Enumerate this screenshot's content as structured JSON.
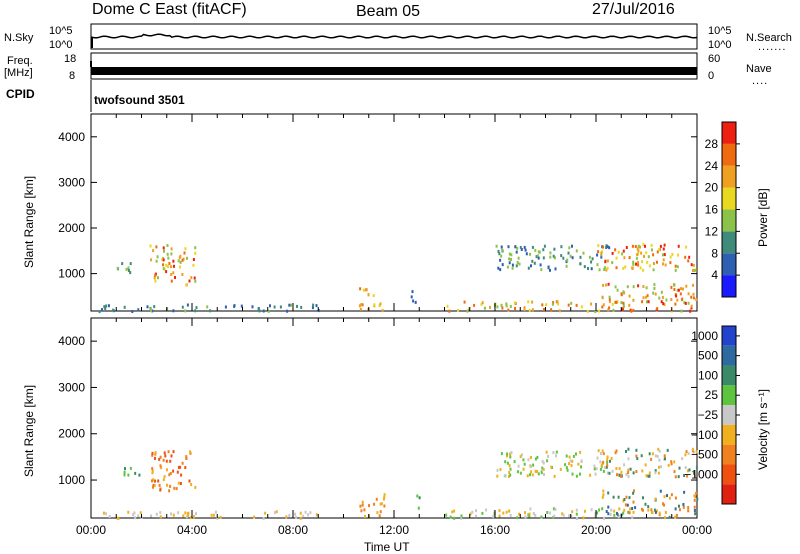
{
  "header": {
    "radar": "Dome C East (fitACF)",
    "beam": "Beam 05",
    "date": "27/Jul/2016"
  },
  "chart_data": [
    {
      "type": "line",
      "name": "noise-panel",
      "left_label": "N.Sky",
      "left_ticks": [
        "10^5",
        "10^0"
      ],
      "right_label": "N.Search",
      "right_ticks": [
        "10^5",
        "10^0"
      ]
    },
    {
      "type": "line",
      "name": "frequency-nave-panel",
      "left_label": [
        "Freq.",
        "[MHz]"
      ],
      "left_ticks": [
        "18",
        "8"
      ],
      "right_label": "Nave",
      "right_ticks": [
        "60",
        "0"
      ]
    },
    {
      "type": "table",
      "name": "cpid-panel",
      "label": "CPID",
      "value": "twofsound 3501"
    },
    {
      "type": "heatmap",
      "name": "power-panel",
      "ylabel": "Slant Range [km]",
      "xlabel": "",
      "ylim": [
        180,
        4500
      ],
      "yticks": [
        1000,
        2000,
        3000,
        4000
      ],
      "xlim": [
        0,
        24
      ],
      "colorbar": {
        "label": "Power [dB]",
        "ticks": [
          "4",
          "8",
          "12",
          "16",
          "20",
          "24",
          "28"
        ],
        "colors": [
          "#1a1aff",
          "#2f5fb0",
          "#3f8a7a",
          "#8bc34a",
          "#e8d820",
          "#f0a020",
          "#f06a10",
          "#ee2010"
        ]
      },
      "blobs": [
        {
          "t0": 1.0,
          "t1": 1.9,
          "r0": 1050,
          "r1": 1300,
          "c": [
            2,
            3
          ]
        },
        {
          "t0": 2.3,
          "t1": 4.1,
          "r0": 750,
          "r1": 1650,
          "c": [
            4,
            5,
            6,
            7,
            3
          ]
        },
        {
          "t0": 10.6,
          "t1": 11.6,
          "r0": 200,
          "r1": 750,
          "c": [
            4,
            5,
            6
          ]
        },
        {
          "t0": 12.5,
          "t1": 13.1,
          "r0": 400,
          "r1": 700,
          "c": [
            1,
            2
          ]
        },
        {
          "t0": 14.0,
          "t1": 21.5,
          "r0": 200,
          "r1": 420,
          "c": [
            5,
            6,
            3,
            4
          ]
        },
        {
          "t0": 16.0,
          "t1": 20.5,
          "r0": 1100,
          "r1": 1650,
          "c": [
            2,
            3,
            1
          ]
        },
        {
          "t0": 20.0,
          "t1": 24,
          "r0": 1100,
          "r1": 1700,
          "c": [
            4,
            5,
            6,
            7,
            3
          ]
        },
        {
          "t0": 20.2,
          "t1": 24,
          "r0": 200,
          "r1": 800,
          "c": [
            6,
            7,
            5,
            3
          ]
        },
        {
          "t0": 0.1,
          "t1": 9.0,
          "r0": 200,
          "r1": 350,
          "c": [
            1,
            2,
            3
          ]
        }
      ]
    },
    {
      "type": "heatmap",
      "name": "velocity-panel",
      "ylabel": "Slant Range [km]",
      "xlabel": "Time UT",
      "ylim": [
        180,
        4500
      ],
      "yticks": [
        1000,
        2000,
        3000,
        4000
      ],
      "xlim": [
        0,
        24
      ],
      "xticks": [
        "00:00",
        "04:00",
        "08:00",
        "12:00",
        "16:00",
        "20:00",
        "00:00"
      ],
      "colorbar": {
        "label": "Velocity [m s⁻¹]",
        "ticks": [
          "1000",
          "500",
          "100",
          "25",
          "−25",
          "−100",
          "−500",
          "−1000"
        ],
        "colors": [
          "#2244cc",
          "#2e6aa0",
          "#3a8a68",
          "#5ec440",
          "#c8c8c8",
          "#f0b020",
          "#f08020",
          "#f05010",
          "#e02010"
        ]
      },
      "blobs": [
        {
          "t0": 1.0,
          "t1": 1.9,
          "r0": 1050,
          "r1": 1300,
          "c": [
            2,
            3
          ]
        },
        {
          "t0": 2.3,
          "t1": 4.1,
          "r0": 750,
          "r1": 1650,
          "c": [
            6,
            7,
            5
          ]
        },
        {
          "t0": 10.6,
          "t1": 11.6,
          "r0": 200,
          "r1": 750,
          "c": [
            5,
            6
          ]
        },
        {
          "t0": 12.5,
          "t1": 13.1,
          "r0": 400,
          "r1": 700,
          "c": [
            2,
            3
          ]
        },
        {
          "t0": 14.0,
          "t1": 21.5,
          "r0": 200,
          "r1": 420,
          "c": [
            5,
            4,
            3
          ]
        },
        {
          "t0": 16.0,
          "t1": 20.5,
          "r0": 1100,
          "r1": 1650,
          "c": [
            3,
            4,
            5
          ]
        },
        {
          "t0": 20.0,
          "t1": 24,
          "r0": 1100,
          "r1": 1700,
          "c": [
            2,
            4,
            5,
            6
          ]
        },
        {
          "t0": 20.2,
          "t1": 24,
          "r0": 200,
          "r1": 800,
          "c": [
            2,
            1,
            5,
            6
          ]
        },
        {
          "t0": 0.1,
          "t1": 9.0,
          "r0": 200,
          "r1": 350,
          "c": [
            5,
            4
          ]
        }
      ]
    }
  ]
}
